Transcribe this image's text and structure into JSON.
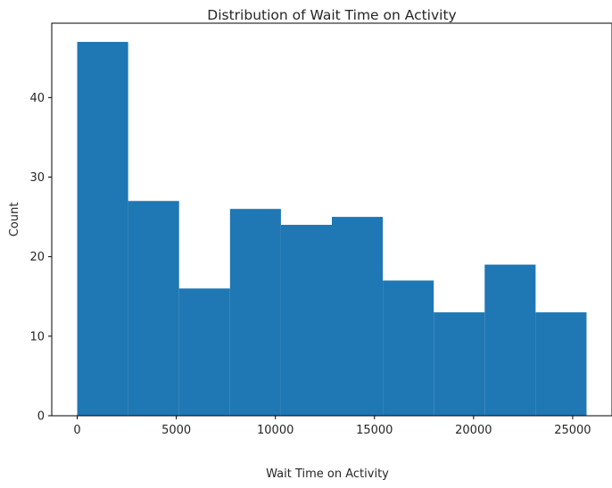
{
  "chart_data": {
    "type": "bar",
    "title": "Distribution of Wait Time on Activity",
    "xlabel": "Wait Time on Activity",
    "ylabel": "Count",
    "bin_edges": [
      0,
      2570,
      5140,
      7710,
      10280,
      12850,
      15420,
      17990,
      20560,
      23130,
      25700
    ],
    "values": [
      47,
      27,
      16,
      26,
      24,
      25,
      17,
      13,
      19,
      13
    ],
    "xlim": [
      -1285,
      26985
    ],
    "ylim": [
      0,
      49.35
    ],
    "xticks": [
      0,
      5000,
      10000,
      15000,
      20000,
      25000
    ],
    "yticks": [
      0,
      10,
      20,
      30,
      40
    ],
    "bar_color": "#1f77b4",
    "grid": false,
    "legend": "none"
  }
}
